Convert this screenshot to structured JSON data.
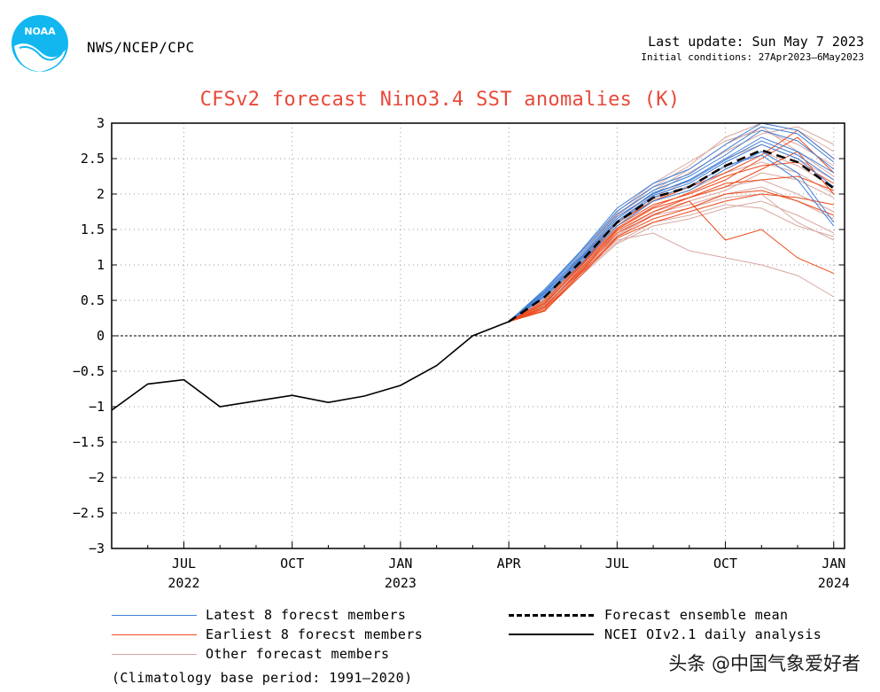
{
  "header": {
    "org": "NWS/NCEP/CPC",
    "last_update": "Last update: Sun May 7 2023",
    "initial_conditions": "Initial conditions: 27Apr2023–6May2023",
    "logo_text": "NOAA"
  },
  "chart_data": {
    "type": "line",
    "title": "CFSv2 forecast Nino3.4 SST anomalies (K)",
    "xlabel": "",
    "ylabel": "",
    "ylim": [
      -3,
      3
    ],
    "xlim": [
      0,
      20
    ],
    "y_ticks": [
      3,
      2.5,
      2,
      1.5,
      1,
      0.5,
      0,
      -0.5,
      -1,
      -1.5,
      -2,
      -2.5,
      -3
    ],
    "y_tick_labels": [
      "3",
      "2.5",
      "2",
      "1.5",
      "1",
      "0.5",
      "0",
      "−0.5",
      "−1",
      "−1.5",
      "−2",
      "−2.5",
      "−3"
    ],
    "x_ticks": [
      {
        "x": 2,
        "month": "JUL",
        "year": "2022"
      },
      {
        "x": 5,
        "month": "OCT",
        "year": ""
      },
      {
        "x": 8,
        "month": "JAN",
        "year": "2023"
      },
      {
        "x": 11,
        "month": "APR",
        "year": ""
      },
      {
        "x": 14,
        "month": "JUL",
        "year": ""
      },
      {
        "x": 17,
        "month": "OCT",
        "year": ""
      },
      {
        "x": 20,
        "month": "JAN",
        "year": "2024"
      }
    ],
    "grid": true,
    "observed": {
      "name": "NCEI OIv2.1 daily analysis",
      "x": [
        0,
        1,
        2,
        3,
        4,
        5,
        6,
        7,
        8,
        9,
        10,
        11
      ],
      "y": [
        -1.05,
        -0.68,
        -0.62,
        -1.0,
        -0.92,
        -0.84,
        -0.94,
        -0.85,
        -0.7,
        -0.42,
        0.0,
        0.2
      ]
    },
    "ensemble_mean": {
      "name": "Forecast ensemble mean",
      "x": [
        11,
        12,
        13,
        14,
        15,
        16,
        17,
        18,
        19,
        20
      ],
      "y": [
        0.2,
        0.55,
        1.05,
        1.6,
        1.95,
        2.1,
        2.4,
        2.62,
        2.45,
        2.08
      ]
    },
    "latest_members": {
      "name": "Latest 8 forecst members",
      "color": "#3f7fd6",
      "x": [
        11,
        12,
        13,
        14,
        15,
        16,
        17,
        18,
        19,
        20
      ],
      "series": [
        [
          0.2,
          0.62,
          1.15,
          1.72,
          2.05,
          2.25,
          2.55,
          2.9,
          2.75,
          2.35
        ],
        [
          0.2,
          0.58,
          1.08,
          1.62,
          1.98,
          2.15,
          2.45,
          2.7,
          2.5,
          2.1
        ],
        [
          0.2,
          0.66,
          1.2,
          1.8,
          2.15,
          2.35,
          2.7,
          3.0,
          2.9,
          2.5
        ],
        [
          0.2,
          0.55,
          1.02,
          1.55,
          1.9,
          2.05,
          2.35,
          2.6,
          2.3,
          1.6
        ],
        [
          0.2,
          0.6,
          1.12,
          1.68,
          2.0,
          2.2,
          2.5,
          2.8,
          2.6,
          2.3
        ],
        [
          0.2,
          0.64,
          1.18,
          1.76,
          2.1,
          2.28,
          2.62,
          2.95,
          2.85,
          2.45
        ],
        [
          0.2,
          0.57,
          1.05,
          1.6,
          1.95,
          2.1,
          2.4,
          2.55,
          2.2,
          1.55
        ],
        [
          0.2,
          0.61,
          1.1,
          1.65,
          2.02,
          2.18,
          2.48,
          2.75,
          2.55,
          2.2
        ]
      ]
    },
    "earliest_members": {
      "name": "Earliest 8 forecst members",
      "color": "#ee4a1c",
      "x": [
        11,
        12,
        13,
        14,
        15,
        16,
        17,
        18,
        19,
        20
      ],
      "series": [
        [
          0.2,
          0.35,
          0.9,
          1.45,
          1.7,
          1.9,
          1.35,
          1.5,
          1.1,
          0.88
        ],
        [
          0.2,
          0.45,
          1.0,
          1.55,
          1.85,
          2.0,
          2.2,
          2.5,
          2.8,
          2.3
        ],
        [
          0.2,
          0.4,
          0.95,
          1.5,
          1.8,
          1.95,
          2.1,
          2.35,
          2.6,
          2.0
        ],
        [
          0.2,
          0.5,
          1.02,
          1.6,
          1.9,
          2.1,
          2.3,
          2.55,
          2.9,
          2.5
        ],
        [
          0.2,
          0.38,
          0.88,
          1.4,
          1.65,
          1.8,
          2.0,
          2.05,
          1.9,
          1.7
        ],
        [
          0.2,
          0.42,
          0.92,
          1.48,
          1.75,
          1.95,
          2.15,
          2.2,
          2.25,
          2.05
        ],
        [
          0.2,
          0.47,
          0.98,
          1.52,
          1.82,
          2.02,
          2.25,
          2.4,
          2.45,
          2.15
        ],
        [
          0.2,
          0.36,
          0.85,
          1.38,
          1.6,
          1.75,
          1.9,
          2.0,
          1.95,
          1.85
        ]
      ]
    },
    "other_members": {
      "name": "Other forecast members",
      "color": "#d8a8a0",
      "x": [
        11,
        12,
        13,
        14,
        15,
        16,
        17,
        18,
        19,
        20
      ],
      "series": [
        [
          0.2,
          0.5,
          1.1,
          1.7,
          2.1,
          2.4,
          2.8,
          3.0,
          2.9,
          2.6
        ],
        [
          0.2,
          0.45,
          0.95,
          1.4,
          1.7,
          1.8,
          1.95,
          2.0,
          1.6,
          1.35
        ],
        [
          0.2,
          0.55,
          1.15,
          1.75,
          2.15,
          2.45,
          2.75,
          2.9,
          2.7,
          2.4
        ],
        [
          0.2,
          0.4,
          0.85,
          1.3,
          1.55,
          1.65,
          1.8,
          1.9,
          1.7,
          1.45
        ],
        [
          0.2,
          0.48,
          1.0,
          1.5,
          1.8,
          1.95,
          2.1,
          2.2,
          2.0,
          1.75
        ],
        [
          0.2,
          0.52,
          1.05,
          1.62,
          1.95,
          2.2,
          2.5,
          2.7,
          2.5,
          2.2
        ],
        [
          0.2,
          0.43,
          0.9,
          1.35,
          1.45,
          1.2,
          1.1,
          1.0,
          0.85,
          0.55
        ],
        [
          0.2,
          0.5,
          1.08,
          1.65,
          2.0,
          2.3,
          2.6,
          2.85,
          2.95,
          2.7
        ],
        [
          0.2,
          0.46,
          0.96,
          1.45,
          1.75,
          1.9,
          2.05,
          2.3,
          2.2,
          1.95
        ],
        [
          0.2,
          0.53,
          1.12,
          1.7,
          2.05,
          2.35,
          2.7,
          2.95,
          2.6,
          2.25
        ],
        [
          0.2,
          0.41,
          0.88,
          1.32,
          1.6,
          1.7,
          1.85,
          1.8,
          1.55,
          1.4
        ],
        [
          0.2,
          0.49,
          1.02,
          1.58,
          1.9,
          2.05,
          2.3,
          2.45,
          2.3,
          2.0
        ],
        [
          0.2,
          0.44,
          0.93,
          1.42,
          1.72,
          1.85,
          2.0,
          2.1,
          1.9,
          1.65
        ],
        [
          0.2,
          0.51,
          1.06,
          1.6,
          1.92,
          2.12,
          2.38,
          2.6,
          2.4,
          2.1
        ]
      ]
    },
    "legend": {
      "latest": "Latest 8 forecst members",
      "earliest": "Earliest 8 forecst members",
      "other": "Other forecast members",
      "mean": "Forecast ensemble mean",
      "analysis": "NCEI OIv2.1 daily analysis"
    },
    "climatology_note": "(Climatology base period: 1991–2020)"
  },
  "watermark": "头条 @中国气象爱好者"
}
